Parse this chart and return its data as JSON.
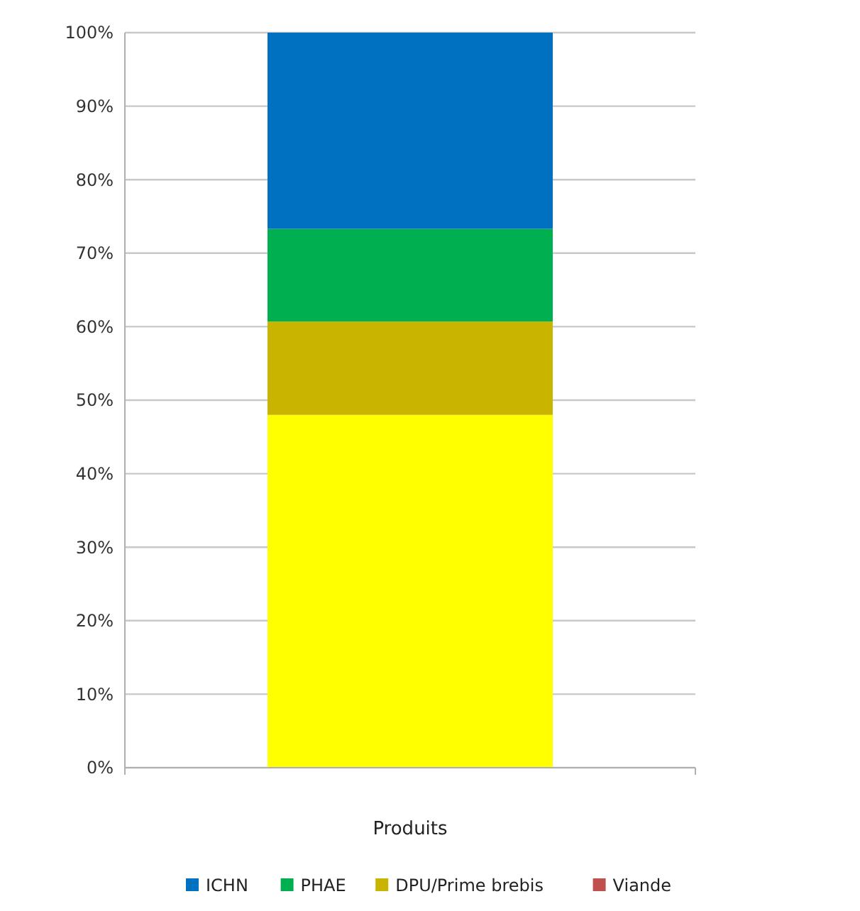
{
  "chart_data": {
    "type": "bar",
    "stacked": true,
    "xlabel": "Produits",
    "categories": [
      null
    ],
    "series": [
      {
        "name": "Viande",
        "color": "#c0504d",
        "values": [
          0
        ]
      },
      {
        "color": "#ffff00",
        "values": [
          48
        ]
      },
      {
        "name": "DPU/Prime brebis",
        "color": "#c9b400",
        "values": [
          12.7
        ]
      },
      {
        "name": "PHAE",
        "color": "#00b050",
        "values": [
          12.6
        ]
      },
      {
        "name": "ICHN",
        "color": "#0070c0",
        "values": [
          26.7
        ]
      }
    ],
    "ylim": [
      0,
      100
    ],
    "yticks": [
      {
        "value": 0,
        "label": "0%"
      },
      {
        "value": 10,
        "label": "10%"
      },
      {
        "value": 20,
        "label": "20%"
      },
      {
        "value": 30,
        "label": "30%"
      },
      {
        "value": 40,
        "label": "40%"
      },
      {
        "value": 50,
        "label": "50%"
      },
      {
        "value": 60,
        "label": "60%"
      },
      {
        "value": 70,
        "label": "70%"
      },
      {
        "value": 80,
        "label": "80%"
      },
      {
        "value": 90,
        "label": "90%"
      },
      {
        "value": 100,
        "label": "100%"
      }
    ],
    "grid": "y",
    "legend": "bottom"
  }
}
